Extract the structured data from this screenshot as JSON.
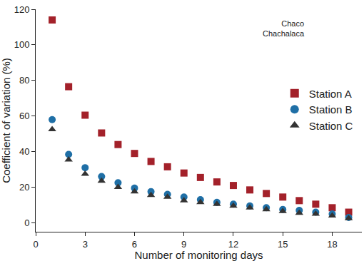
{
  "chart_data": {
    "type": "scatter",
    "x_label": "Number of monitoring days",
    "y_label": "Coefficient of variation (%)",
    "annotation": [
      "Chaco",
      "Chachalaca"
    ],
    "x": [
      1,
      2,
      3,
      4,
      5,
      6,
      7,
      8,
      9,
      10,
      11,
      12,
      13,
      14,
      15,
      16,
      17,
      18,
      19
    ],
    "series": [
      {
        "name": "Station A",
        "color": "#a3212a",
        "marker": "square",
        "values": [
          114,
          76.5,
          60.5,
          50.5,
          44,
          39,
          34.5,
          31.5,
          28,
          25.5,
          23,
          21,
          18.5,
          16.5,
          14.5,
          12.5,
          10.5,
          8.5,
          6
        ]
      },
      {
        "name": "Station B",
        "color": "#1f6fa6",
        "marker": "circle",
        "values": [
          58,
          38.5,
          31,
          26,
          22.5,
          19.5,
          17.5,
          16,
          14.5,
          13,
          11.5,
          10.5,
          9.5,
          8.5,
          7.5,
          7,
          6,
          5,
          3
        ]
      },
      {
        "name": "Station C",
        "color": "#333333",
        "marker": "triangle-up",
        "values": [
          52.5,
          35.5,
          27.5,
          23.5,
          20,
          17.5,
          15.5,
          14.5,
          12.5,
          11.5,
          10.5,
          9.5,
          8.5,
          7.5,
          6.5,
          5.5,
          5,
          4,
          2.5
        ]
      }
    ],
    "xlim": [
      0,
      19.8
    ],
    "xticks": [
      0,
      3,
      6,
      9,
      12,
      15,
      18
    ],
    "ylim": [
      -5,
      120
    ],
    "yticks": [
      0,
      20,
      40,
      60,
      80,
      100,
      120
    ],
    "grid": false,
    "legend": "right"
  }
}
